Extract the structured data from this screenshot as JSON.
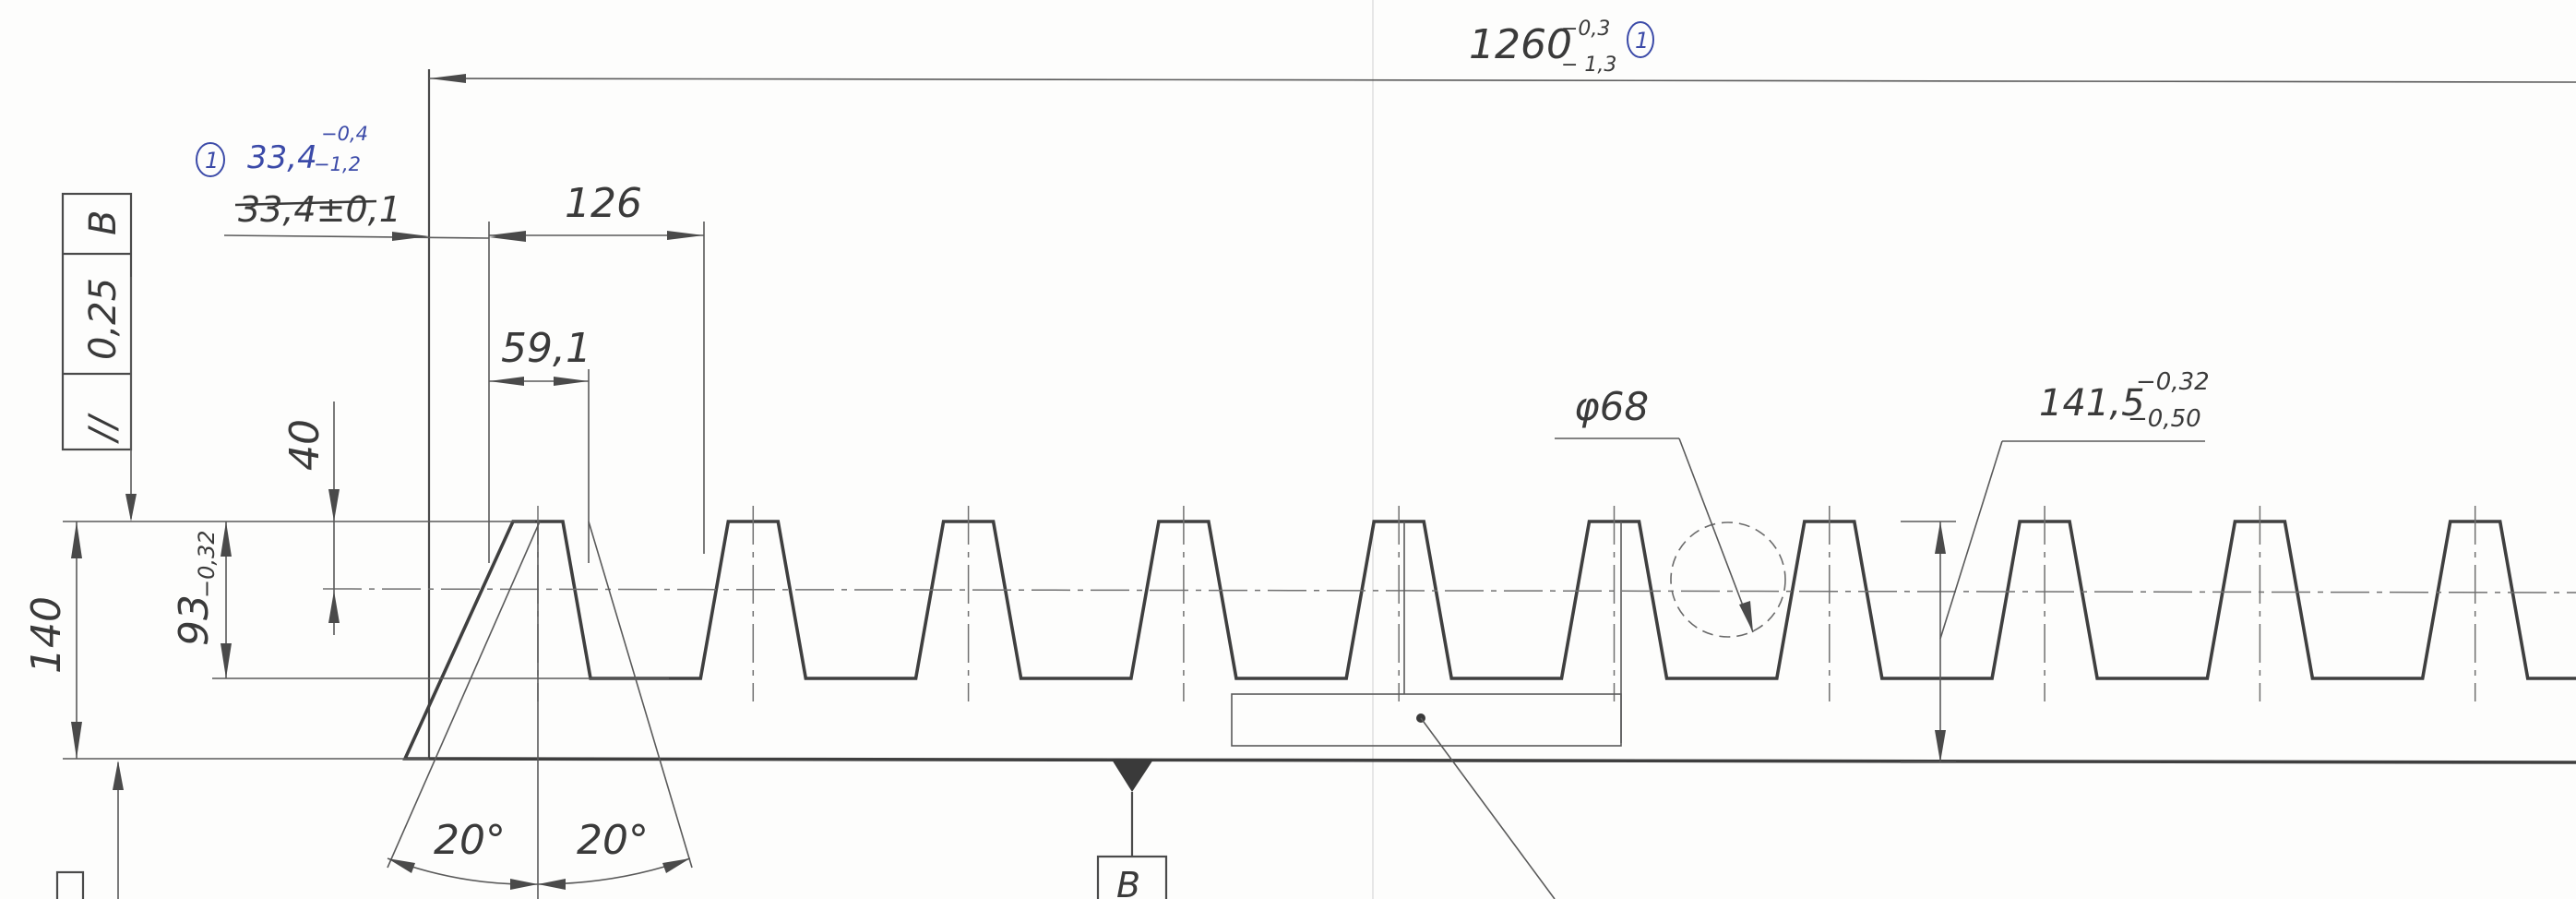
{
  "overall_length": {
    "value": "1260",
    "upper_tol": "−0,3",
    "lower_tol": "− 1,3",
    "revision_mark": "1"
  },
  "first_tooth_offset": {
    "value_new": "33,4",
    "upper_new": "−0,4",
    "lower_new": "−1,2",
    "value_old": "33,4±0,1",
    "revision_mark": "1"
  },
  "pitch": {
    "value": "126"
  },
  "tooth_top_width": {
    "value": "59,1"
  },
  "pitch_line_depth": {
    "value": "40"
  },
  "tooth_root_height": {
    "value": "93",
    "tol": "−0,32"
  },
  "rack_height": {
    "value": "140"
  },
  "circle_diameter": {
    "value": "φ68"
  },
  "measurement": {
    "value": "141,5",
    "upper_tol": "−0,32",
    "lower_tol": "−0,50"
  },
  "flank_angles": {
    "left": "20°",
    "right": "20°"
  },
  "parallelism_frame": {
    "symbol": "//",
    "tolerance": "0,25",
    "datum": "B"
  },
  "datum_marker": {
    "label": "B"
  },
  "colors": {
    "line": "#4a4a4a",
    "annotation": "#3b4aa8",
    "paper": "#fdfdfc"
  }
}
